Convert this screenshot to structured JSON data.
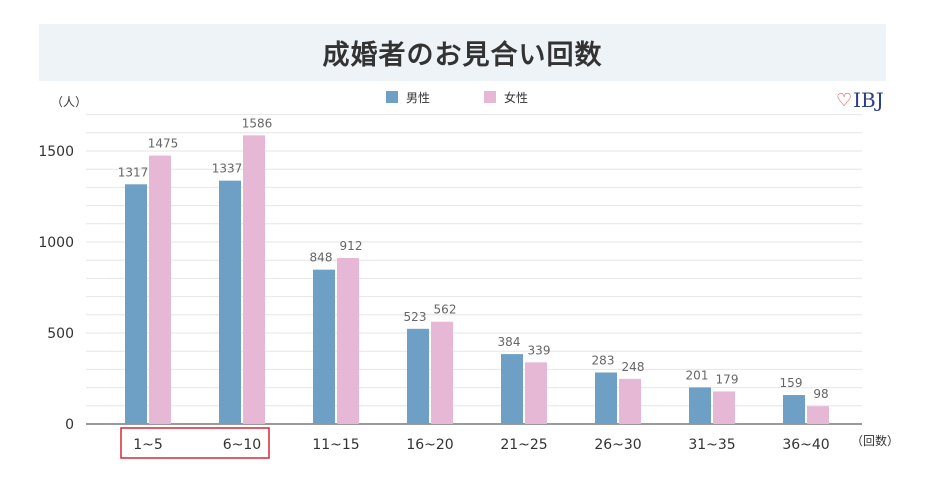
{
  "chart_data": {
    "type": "bar",
    "title": "成婚者のお見合い回数",
    "ylabel": "（人）",
    "xunit": "（回数）",
    "ylim": [
      0,
      1700
    ],
    "yticks": [
      0,
      500,
      1000,
      1500
    ],
    "grid": true,
    "legend_position": "top-center",
    "categories": [
      "1~5",
      "6~10",
      "11~15",
      "16~20",
      "21~25",
      "26~30",
      "31~35",
      "36~40"
    ],
    "highlighted_categories": [
      "1~5",
      "6~10"
    ],
    "series": [
      {
        "name": "男性",
        "color": "#6e9fc5",
        "values": [
          1317,
          1337,
          848,
          523,
          384,
          283,
          201,
          159
        ]
      },
      {
        "name": "女性",
        "color": "#e6b8d6",
        "values": [
          1475,
          1586,
          912,
          562,
          339,
          248,
          179,
          98
        ]
      }
    ]
  },
  "logo": {
    "symbol": "♡",
    "text": "IBJ"
  },
  "colors": {
    "highlight_box": "#d6283a",
    "title_bg": "#eef3f8",
    "grid": "#e6e6e6",
    "axis": "#999999"
  }
}
